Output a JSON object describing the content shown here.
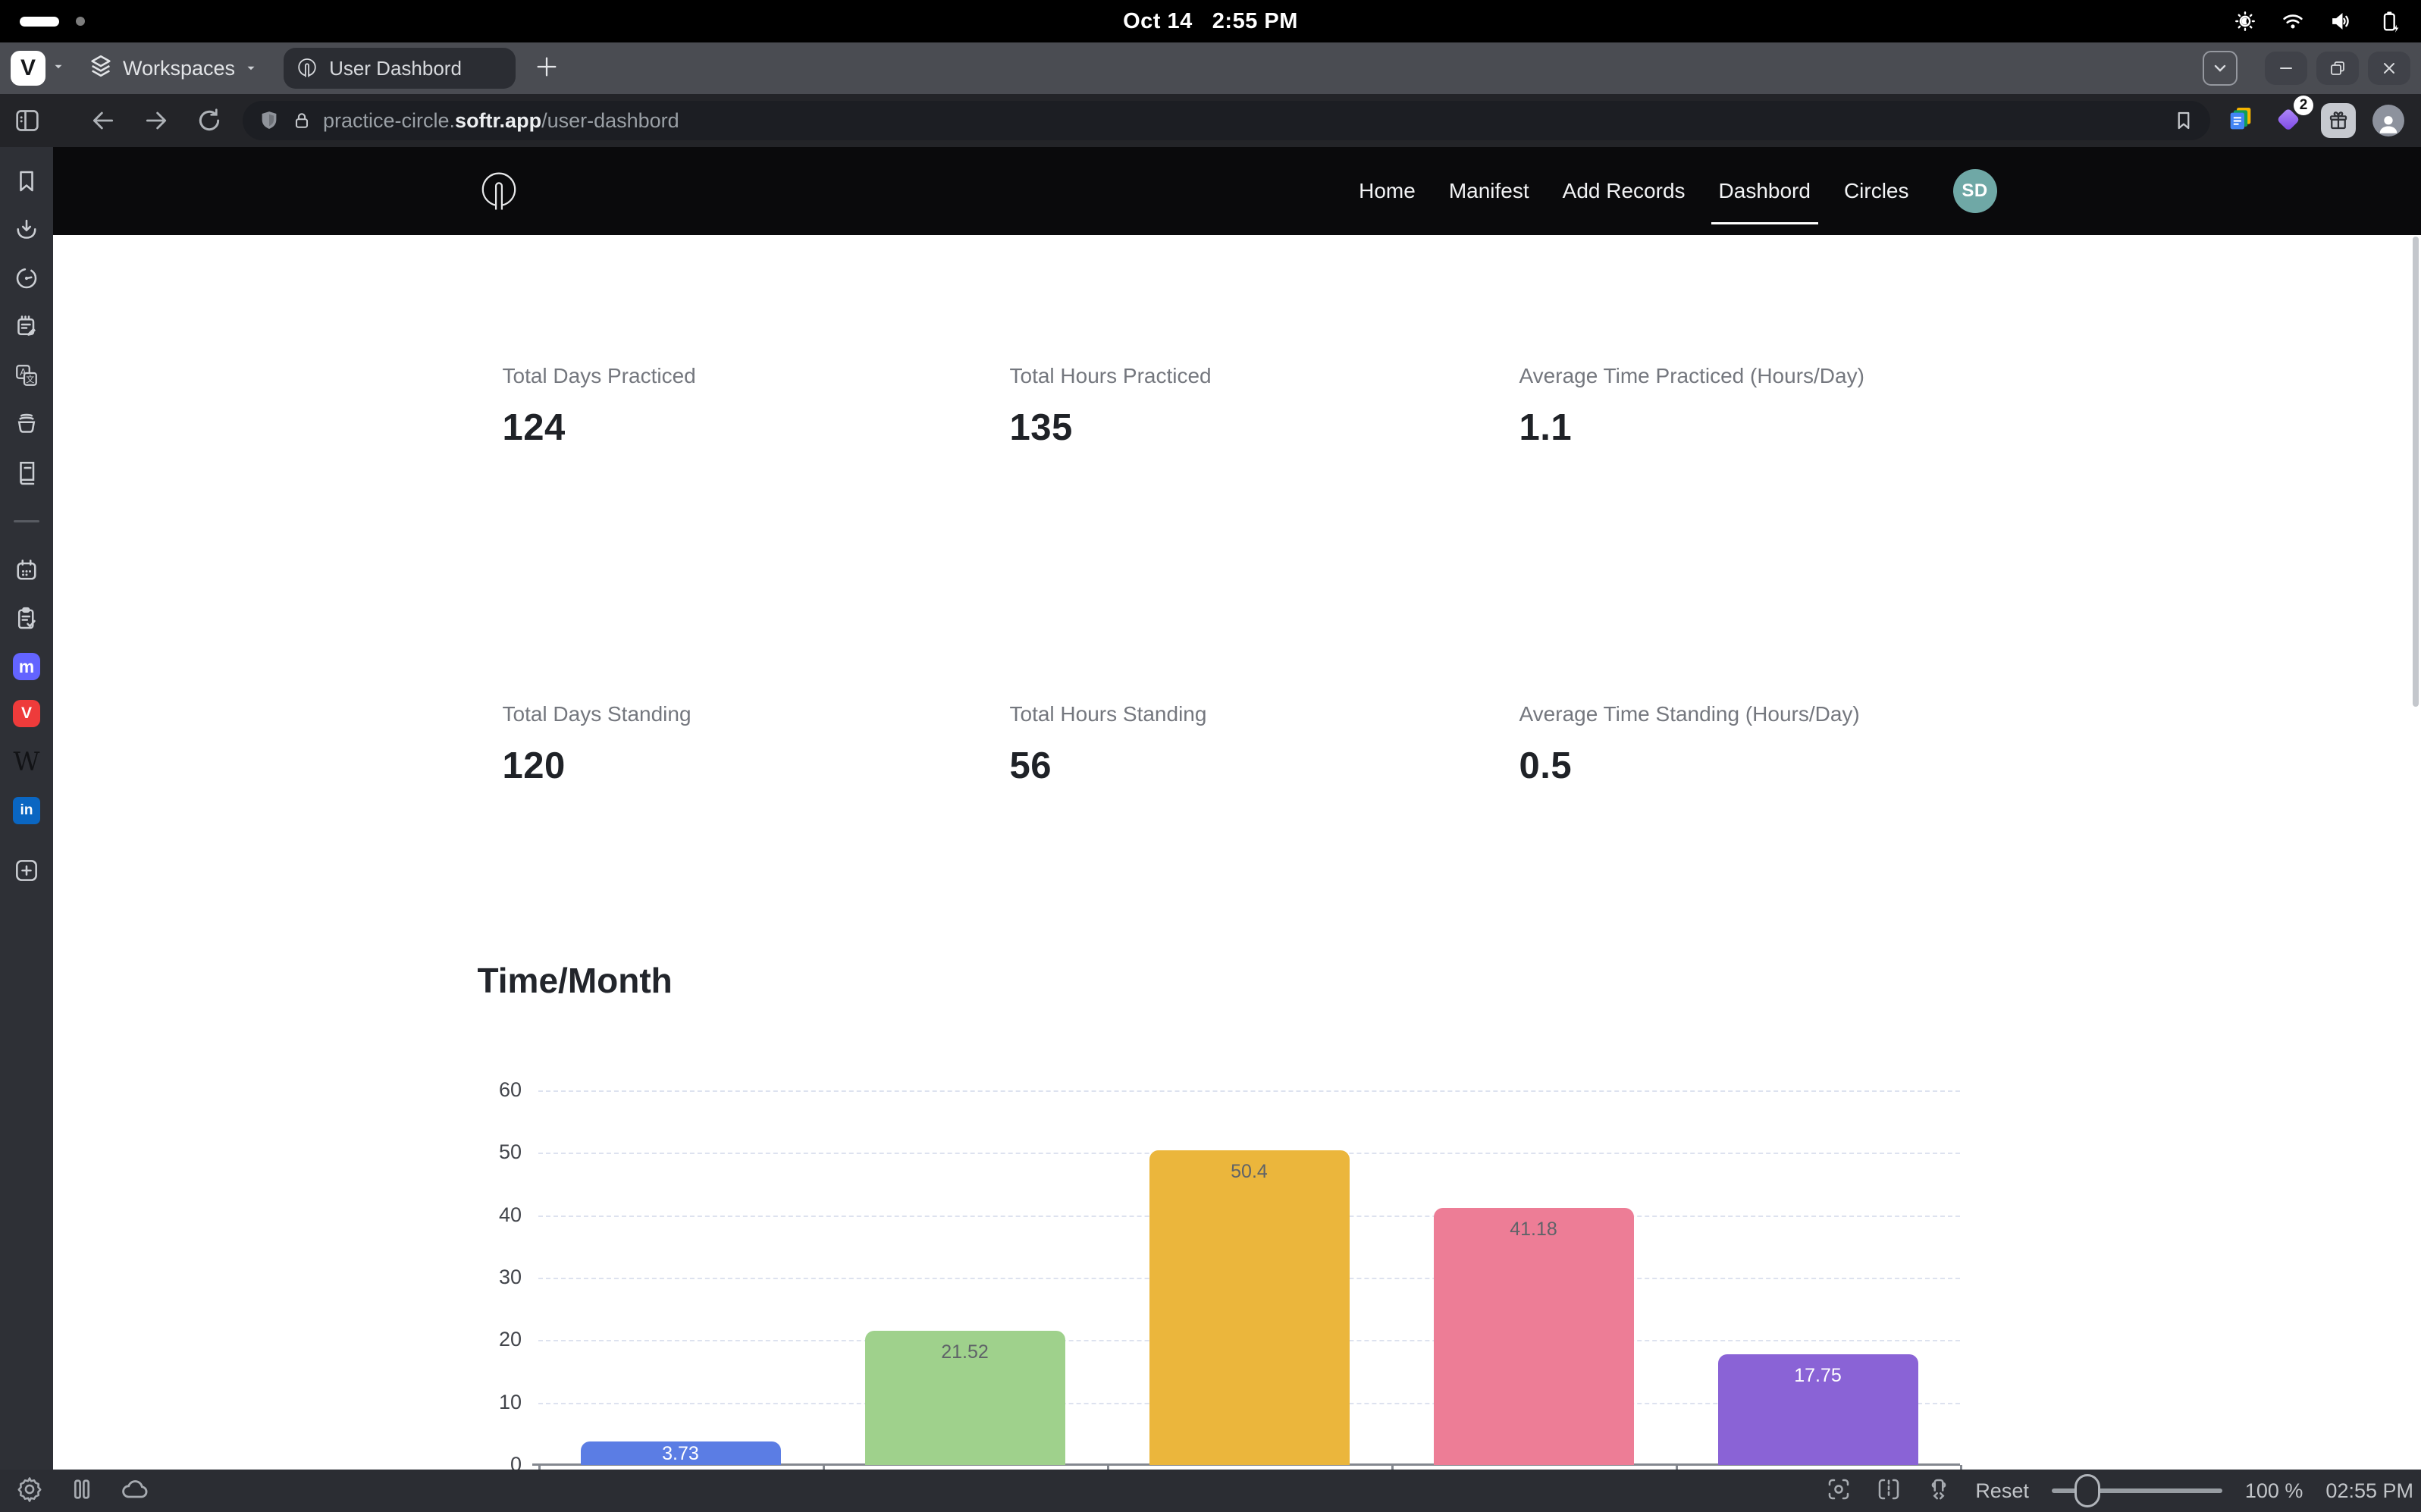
{
  "menubar": {
    "date": "Oct 14",
    "time": "2:55 PM"
  },
  "tabbar": {
    "workspaces_label": "Workspaces",
    "tab_title": "User Dashbord"
  },
  "addressbar": {
    "url_prefix": "practice-circle.",
    "url_domain": "softr.app",
    "url_path": "/user-dashbord",
    "extension_badge": "2"
  },
  "sidebar": {
    "icons": [
      "bookmarks",
      "downloads",
      "history",
      "notes",
      "translate",
      "basket",
      "reading-list",
      "calendar",
      "tasks",
      "mastodon",
      "vivaldi-social",
      "wikipedia",
      "linkedin",
      "add-web-panel"
    ]
  },
  "page": {
    "header": {
      "nav_items": [
        "Home",
        "Manifest",
        "Add Records",
        "Dashbord",
        "Circles"
      ],
      "active_item": "Dashbord",
      "avatar_initials": "SD",
      "avatar_color": "#6fa8a6"
    },
    "stats": [
      {
        "label": "Total Days Practiced",
        "value": "124"
      },
      {
        "label": "Total Hours Practiced",
        "value": "135"
      },
      {
        "label": "Average Time Practiced (Hours/Day)",
        "value": "1.1"
      },
      {
        "label": "Total Days Standing",
        "value": "120"
      },
      {
        "label": "Total Hours Standing",
        "value": "56"
      },
      {
        "label": "Average Time Standing (Hours/Day)",
        "value": "0.5"
      }
    ],
    "section_title": "Time/Month"
  },
  "chart_data": {
    "type": "bar",
    "title": "Time/Month",
    "categories": [
      "",
      "",
      "",
      "",
      ""
    ],
    "values": [
      3.73,
      21.52,
      50.4,
      41.18,
      17.75
    ],
    "bar_colors": [
      "#5b7de4",
      "#9fd18c",
      "#ebb63c",
      "#ed7d96",
      "#8a63d6"
    ],
    "label_colors": [
      "#ffffff",
      "#5f6368",
      "#5f6368",
      "#5f6368",
      "#ffffff"
    ],
    "xlabel": "",
    "ylabel": "",
    "ylim": [
      0,
      60
    ],
    "yticks": [
      0,
      10,
      20,
      30,
      40,
      50,
      60
    ],
    "grid": true,
    "value_labels": true,
    "legend": false
  },
  "statusbar": {
    "reset_label": "Reset",
    "zoom_level": "100 %",
    "time": "02:55 PM"
  },
  "colors": {
    "header_bg": "#0a0a0c",
    "avatar_teal": "#6fa8a6",
    "mastodon_purple": "#6364ff",
    "vivaldi_red": "#ee3b3b",
    "linkedin_blue": "#0a66c2"
  }
}
